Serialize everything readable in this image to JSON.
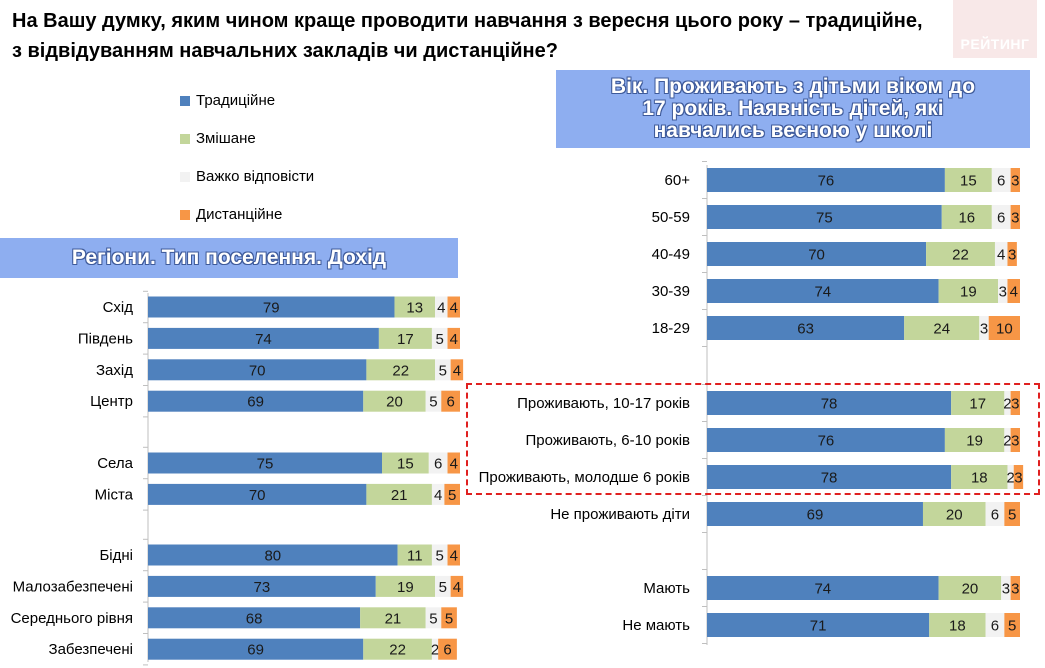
{
  "title": {
    "line1": "На Вашу думку, яким чином краще проводити навчання з вересня цього року – традиційне,",
    "line2": "з відвідуванням навчальних закладів чи дистанційне?"
  },
  "logo": {
    "text": "РЕЙТИНГ"
  },
  "legend": [
    {
      "label": "Традиційне",
      "color": "#4f81bd"
    },
    {
      "label": "Змішане",
      "color": "#c3d69b"
    },
    {
      "label": "Важко відповісти",
      "color": "#f2f2f2"
    },
    {
      "label": "Дистанційне",
      "color": "#f79646"
    }
  ],
  "headers": {
    "left": "Регіони. Тип поселення. Дохід",
    "right_line1": "Вік. Проживають з дітьми віком до",
    "right_line2": "17 років. Наявність дітей, які",
    "right_line3": "навчались весною у школі"
  },
  "chart_data": [
    {
      "type": "bar",
      "orientation": "horizontal",
      "stacked": true,
      "title": "Регіони. Тип поселення. Дохід",
      "series_names": [
        "Традиційне",
        "Змішане",
        "Важко відповісти",
        "Дистанційне"
      ],
      "groups": [
        {
          "rows": [
            {
              "label": "Схід",
              "values": [
                79,
                13,
                4,
                4
              ]
            },
            {
              "label": "Південь",
              "values": [
                74,
                17,
                5,
                4
              ]
            },
            {
              "label": "Захід",
              "values": [
                70,
                22,
                5,
                4
              ]
            },
            {
              "label": "Центр",
              "values": [
                69,
                20,
                5,
                6
              ]
            }
          ]
        },
        {
          "rows": [
            {
              "label": "Села",
              "values": [
                75,
                15,
                6,
                4
              ]
            },
            {
              "label": "Міста",
              "values": [
                70,
                21,
                4,
                5
              ]
            }
          ]
        },
        {
          "rows": [
            {
              "label": "Бідні",
              "values": [
                80,
                11,
                5,
                4
              ]
            },
            {
              "label": "Малозабезпечені",
              "values": [
                73,
                19,
                5,
                4
              ]
            },
            {
              "label": "Середнього рівня",
              "values": [
                68,
                21,
                5,
                5
              ]
            },
            {
              "label": "Забезпечені",
              "values": [
                69,
                22,
                2,
                6
              ]
            }
          ]
        }
      ]
    },
    {
      "type": "bar",
      "orientation": "horizontal",
      "stacked": true,
      "title": "Вік. Проживають з дітьми віком до 17 років. Наявність дітей, які навчались весною у школі",
      "series_names": [
        "Традиційне",
        "Змішане",
        "Важко відповісти",
        "Дистанційне"
      ],
      "groups": [
        {
          "rows": [
            {
              "label": "60+",
              "values": [
                76,
                15,
                6,
                3
              ]
            },
            {
              "label": "50-59",
              "values": [
                75,
                16,
                6,
                3
              ]
            },
            {
              "label": "40-49",
              "values": [
                70,
                22,
                4,
                3
              ]
            },
            {
              "label": "30-39",
              "values": [
                74,
                19,
                3,
                4
              ]
            },
            {
              "label": "18-29",
              "values": [
                63,
                24,
                3,
                10
              ]
            }
          ]
        },
        {
          "rows": [
            {
              "label": "Проживають, 10-17 років",
              "values": [
                78,
                17,
                2,
                3
              ]
            },
            {
              "label": "Проживають, 6-10 років",
              "values": [
                76,
                19,
                2,
                3
              ]
            },
            {
              "label": "Проживають, молодше 6 років",
              "values": [
                78,
                18,
                2,
                3
              ]
            },
            {
              "label": "Не проживають діти",
              "values": [
                69,
                20,
                6,
                5
              ]
            }
          ]
        },
        {
          "rows": [
            {
              "label": "Мають",
              "values": [
                74,
                20,
                3,
                3
              ]
            },
            {
              "label": "Не мають",
              "values": [
                71,
                18,
                6,
                5
              ]
            }
          ]
        }
      ]
    }
  ]
}
